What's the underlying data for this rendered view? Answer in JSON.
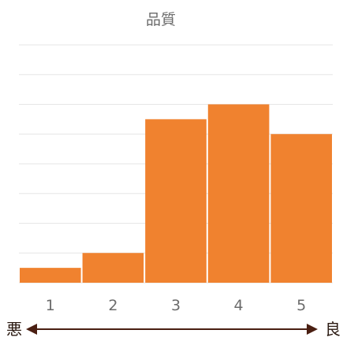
{
  "chart_data": {
    "type": "bar",
    "title": "品質",
    "categories": [
      "1",
      "2",
      "3",
      "4",
      "5"
    ],
    "values": [
      5,
      10,
      55,
      60,
      50
    ],
    "ylim": [
      0,
      80
    ],
    "grid": true,
    "legend": "none",
    "bar_color": "#f0822f",
    "arrow": {
      "left_label": "悪",
      "right_label": "良",
      "color": "#4a1f12"
    }
  }
}
